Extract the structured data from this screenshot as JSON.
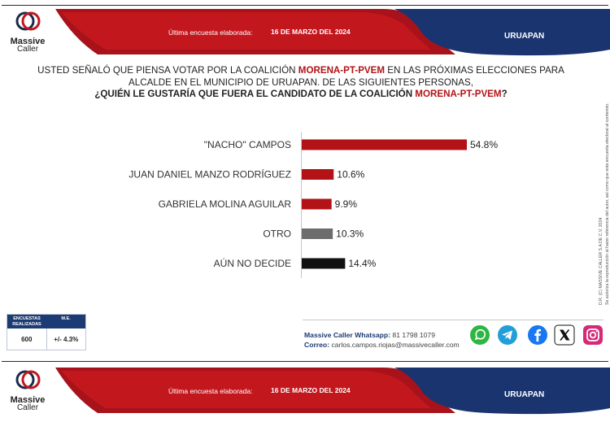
{
  "header": {
    "logo_name": "Massive",
    "logo_sub": "Caller",
    "label": "Última encuesta elaborada:",
    "date": "16 DE MARZO DEL 2024",
    "city": "URUAPAN"
  },
  "question": {
    "part1": "USTED SEÑALÓ QUE PIENSA VOTAR POR LA COALICIÓN ",
    "coalition": "MORENA-PT-PVEM",
    "part2": "  EN LAS PRÓXIMAS ELECCIONES PARA",
    "line2": "ALCALDE EN EL MUNICIPIO DE URUAPAN.  DE LAS SIGUIENTES PERSONAS,",
    "line3": "¿QUIÉN LE GUSTARÍA QUE FUERA EL CANDIDATO  DE LA COALICIÓN ",
    "line3_end": "?"
  },
  "chart_data": {
    "type": "bar",
    "orientation": "horizontal",
    "categories": [
      "\"NACHO\" CAMPOS",
      "JUAN DANIEL MANZO RODRÍGUEZ",
      "GABRIELA MOLINA AGUILAR",
      "OTRO",
      "AÚN NO DECIDE"
    ],
    "values": [
      54.8,
      10.6,
      9.9,
      10.3,
      14.4
    ],
    "value_labels": [
      "54.8%",
      "10.6%",
      "9.9%",
      "10.3%",
      "14.4%"
    ],
    "colors": [
      "#b31217",
      "#b31217",
      "#b31217",
      "#6d6d6d",
      "#111111"
    ],
    "unit": "%",
    "xlim": [
      0,
      54.8
    ],
    "grid": false,
    "legend": "none"
  },
  "side_note": {
    "line1": "D.R. (C) MASSIVE CALLER S.A DE C.V. 2024",
    "line2": "Se autoriza la reproducción al hacer referencia del autor, así como que esta encuesta electoral al contenido."
  },
  "survey_box": {
    "head1": "ENCUESTAS REALIZADAS",
    "head2": "M.E.",
    "value1": "600",
    "value2": "+/- 4.3%"
  },
  "contact": {
    "whatsapp_label": "Massive Caller Whatsapp:",
    "whatsapp_number": "81 1798 1079",
    "email_label": "Correo:",
    "email": "carlos.campos.riojas@massivecaller.com"
  },
  "social_icons": [
    "whatsapp-icon",
    "telegram-icon",
    "facebook-icon",
    "x-icon",
    "instagram-icon"
  ],
  "colors": {
    "brand_red": "#b31217",
    "brand_navy": "#1c3a73",
    "other_gray": "#6d6d6d",
    "undecided_black": "#111111"
  }
}
